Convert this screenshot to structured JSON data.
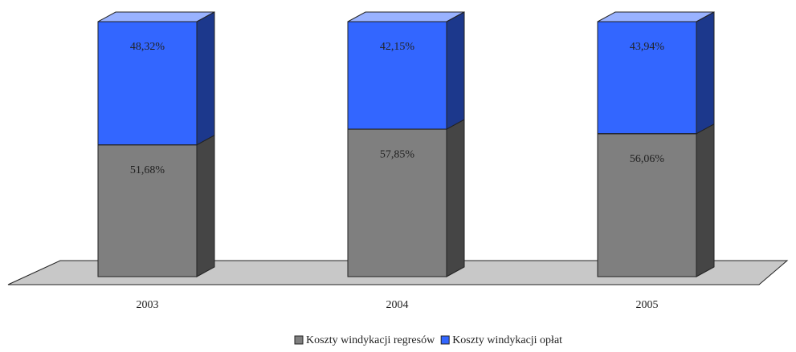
{
  "chart_data": {
    "type": "stacked_bar_3d",
    "categories": [
      "2003",
      "2004",
      "2005"
    ],
    "series": [
      {
        "name": "Koszty windykacji regresów",
        "color": "#7f7f7f",
        "values": [
          51.68,
          57.85,
          56.06
        ],
        "value_labels": [
          "51,68%",
          "57,85%",
          "56,06%"
        ]
      },
      {
        "name": "Koszty windykacji opłat",
        "color": "#3366ff",
        "values": [
          48.32,
          42.15,
          43.94
        ],
        "value_labels": [
          "48,32%",
          "42,15%",
          "43,94%"
        ]
      }
    ],
    "ylim": [
      0,
      100
    ]
  }
}
